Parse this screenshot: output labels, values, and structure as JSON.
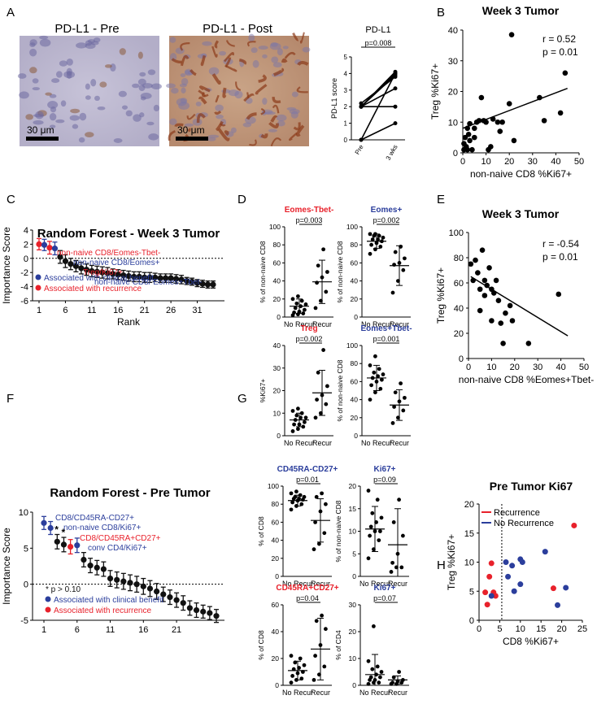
{
  "panel_labels": {
    "A": "A",
    "B": "B",
    "C": "C",
    "D": "D",
    "E": "E",
    "F": "F",
    "G": "G",
    "H": "H"
  },
  "panelA": {
    "pre_title": "PD-L1 - Pre",
    "post_title": "PD-L1 - Post",
    "scale_label": "30 μm"
  },
  "colors": {
    "red": "#e8212b",
    "blue": "#2b3e9c",
    "black": "#111111",
    "line": "#000000"
  },
  "chart_data": [
    {
      "id": "A_pdl1",
      "type": "line",
      "title": "PD-L1",
      "ylabel": "PD-L1 score",
      "categories": [
        "Pre",
        "3 wks"
      ],
      "pvalue": "p=0.008",
      "ylim": [
        0,
        5
      ],
      "yticks": [
        "0",
        "1",
        "2",
        "3",
        "4",
        "5"
      ],
      "pairs": [
        [
          0,
          4.0
        ],
        [
          0,
          1.0
        ],
        [
          2,
          4.1
        ],
        [
          2,
          3.9
        ],
        [
          2,
          2.0
        ],
        [
          2,
          3.1
        ],
        [
          2.2,
          3.8
        ],
        [
          2,
          4.0
        ]
      ]
    },
    {
      "id": "B",
      "type": "scatter",
      "title": "Week 3 Tumor",
      "xlabel": "non-naive CD8 %Ki67+",
      "ylabel": "Treg %Ki67+",
      "xlim": [
        0,
        50
      ],
      "ylim": [
        0,
        40
      ],
      "xticks": [
        "0",
        "10",
        "20",
        "30",
        "40",
        "50"
      ],
      "yticks": [
        "0",
        "10",
        "20",
        "30",
        "40"
      ],
      "r": "r = 0.52",
      "p": "p = 0.01",
      "fit": [
        [
          0,
          8
        ],
        [
          45,
          21
        ]
      ],
      "points": [
        [
          0.5,
          1
        ],
        [
          0.5,
          3
        ],
        [
          1,
          5
        ],
        [
          1.5,
          2
        ],
        [
          2,
          1
        ],
        [
          2,
          8
        ],
        [
          2.5,
          6
        ],
        [
          3,
          4
        ],
        [
          3,
          9.5
        ],
        [
          4,
          1
        ],
        [
          5,
          5
        ],
        [
          5,
          8
        ],
        [
          6,
          10
        ],
        [
          7,
          10.5
        ],
        [
          8,
          18
        ],
        [
          9,
          10.5
        ],
        [
          10,
          10
        ],
        [
          11,
          1
        ],
        [
          12,
          2
        ],
        [
          13,
          11
        ],
        [
          15,
          10
        ],
        [
          16,
          7
        ],
        [
          17,
          10
        ],
        [
          20,
          16
        ],
        [
          21,
          38.5
        ],
        [
          22,
          4
        ],
        [
          33,
          18
        ],
        [
          35,
          10.5
        ],
        [
          42,
          13
        ],
        [
          44,
          26
        ]
      ]
    },
    {
      "id": "C",
      "type": "scatter",
      "title": "Random Forest - Week 3 Tumor",
      "xlabel": "Rank",
      "ylabel": "Importance Score",
      "ylim": [
        -6,
        4
      ],
      "yticks": [
        "-6",
        "-4",
        "-2",
        "0",
        "2",
        "4"
      ],
      "xticks": [
        "1",
        "6",
        "11",
        "16",
        "21",
        "26",
        "31"
      ],
      "values": [
        2.0,
        1.9,
        1.5,
        1.4,
        0.2,
        -0.4,
        -0.8,
        -1.1,
        -1.4,
        -1.6,
        -1.8,
        -1.9,
        -2.0,
        -2.1,
        -2.2,
        -2.3,
        -2.4,
        -2.5,
        -2.6,
        -2.6,
        -2.7,
        -2.7,
        -2.7,
        -2.8,
        -2.8,
        -2.8,
        -2.9,
        -3.0,
        -3.2,
        -3.3,
        -3.5,
        -3.6,
        -3.7,
        -3.7
      ],
      "errors": [
        0.8,
        0.8,
        0.9,
        0.9,
        0.9,
        0.9,
        0.8,
        0.8,
        0.8,
        0.8,
        0.8,
        0.8,
        0.8,
        0.8,
        0.7,
        0.7,
        0.7,
        0.7,
        0.7,
        0.7,
        0.7,
        0.7,
        0.6,
        0.6,
        0.6,
        0.6,
        0.6,
        0.6,
        0.5,
        0.5,
        0.5,
        0.5,
        0.5,
        0.5
      ],
      "point_colors": [
        "red",
        "blue",
        "red",
        "blue"
      ],
      "annotations": [
        {
          "text": "non-naive CD8/Eomes-Tbet-",
          "color": "red"
        },
        {
          "text": "non-naive CD8/Eomes+",
          "color": "blue"
        },
        {
          "text": "Treg/Ki67+",
          "color": "red"
        },
        {
          "text": "non-naive CD8/ Eomes+Tbet-",
          "color": "blue"
        }
      ],
      "legend": [
        {
          "text": "Associated with clinical benefit",
          "color": "blue"
        },
        {
          "text": "Associated with recurrence",
          "color": "red"
        }
      ]
    },
    {
      "id": "D1",
      "type": "scatter",
      "title": "Eomes-Tbet-",
      "title_color": "red",
      "ylabel": "% of non-naive CD8",
      "categories": [
        "No Recur",
        "Recur"
      ],
      "pvalue": "p=0.003",
      "ylim": [
        0,
        100
      ],
      "yticks": [
        "0",
        "20",
        "40",
        "60",
        "80",
        "100"
      ],
      "groups": [
        {
          "mean": 12,
          "sd": 8,
          "points": [
            2,
            3,
            4,
            5,
            6,
            8,
            10,
            12,
            14,
            15,
            18,
            20,
            23
          ]
        },
        {
          "mean": 39,
          "sd": 24,
          "points": [
            10,
            18,
            28,
            38,
            44,
            50,
            57,
            75
          ]
        }
      ]
    },
    {
      "id": "D2",
      "type": "scatter",
      "title": "Eomes+",
      "title_color": "blue",
      "ylabel": "% of non-naive CD8",
      "categories": [
        "No Recur",
        "Recur"
      ],
      "pvalue": "p=0.002",
      "ylim": [
        0,
        100
      ],
      "yticks": [
        "0",
        "20",
        "40",
        "60",
        "80",
        "100"
      ],
      "groups": [
        {
          "mean": 84,
          "sd": 8,
          "points": [
            70,
            75,
            78,
            80,
            82,
            84,
            86,
            86,
            88,
            90,
            90,
            92,
            92
          ]
        },
        {
          "mean": 57,
          "sd": 22,
          "points": [
            27,
            40,
            52,
            58,
            60,
            65,
            72,
            78
          ]
        }
      ]
    },
    {
      "id": "D3",
      "type": "scatter",
      "title": "Treg",
      "title_color": "red",
      "ylabel": "%Ki67+",
      "categories": [
        "No Recur",
        "Recur"
      ],
      "pvalue": "p=0.002",
      "ylim": [
        0,
        40
      ],
      "yticks": [
        "0",
        "10",
        "20",
        "30",
        "40"
      ],
      "groups": [
        {
          "mean": 7,
          "sd": 3,
          "points": [
            2,
            3,
            4,
            5,
            5,
            6,
            7,
            8,
            8,
            9,
            10,
            11,
            12
          ]
        },
        {
          "mean": 19,
          "sd": 10,
          "points": [
            8,
            10,
            14,
            16,
            18,
            22,
            28,
            38
          ]
        }
      ]
    },
    {
      "id": "D4",
      "type": "scatter",
      "title": "Eomes+Tbet-",
      "title_color": "blue",
      "ylabel": "% of non-naive CD8",
      "categories": [
        "No Recur",
        "Recur"
      ],
      "pvalue": "p=0.001",
      "ylim": [
        0,
        100
      ],
      "yticks": [
        "0",
        "20",
        "40",
        "60",
        "80",
        "100"
      ],
      "groups": [
        {
          "mean": 64,
          "sd": 14,
          "points": [
            40,
            48,
            52,
            56,
            60,
            62,
            64,
            66,
            68,
            70,
            74,
            78,
            88
          ]
        },
        {
          "mean": 34,
          "sd": 17,
          "points": [
            14,
            20,
            28,
            32,
            38,
            42,
            48,
            58
          ]
        }
      ]
    },
    {
      "id": "E",
      "type": "scatter",
      "title": "Week 3 Tumor",
      "xlabel": "non-naive CD8 %Eomes+Tbet-",
      "ylabel": "Treg %Ki67+",
      "xlim": [
        0,
        50
      ],
      "ylim": [
        0,
        100
      ],
      "xticks": [
        "0",
        "10",
        "20",
        "30",
        "40",
        "50"
      ],
      "yticks": [
        "0",
        "20",
        "40",
        "60",
        "80",
        "100"
      ],
      "r": "r = -0.54",
      "p": "p = 0.01",
      "fit": [
        [
          1,
          65
        ],
        [
          43,
          18
        ]
      ],
      "points": [
        [
          1,
          75
        ],
        [
          2,
          62
        ],
        [
          3,
          78
        ],
        [
          4,
          68
        ],
        [
          5,
          55
        ],
        [
          5,
          38
        ],
        [
          6,
          86
        ],
        [
          7,
          62
        ],
        [
          7,
          50
        ],
        [
          8,
          58
        ],
        [
          9,
          72
        ],
        [
          10,
          55
        ],
        [
          10,
          30
        ],
        [
          11,
          52
        ],
        [
          12,
          62
        ],
        [
          13,
          46
        ],
        [
          14,
          28
        ],
        [
          15,
          12
        ],
        [
          16,
          36
        ],
        [
          18,
          42
        ],
        [
          19,
          30
        ],
        [
          26,
          12
        ],
        [
          39,
          51
        ]
      ]
    },
    {
      "id": "F",
      "type": "scatter",
      "title": "Random Forest - Pre Tumor",
      "ylabel": "Importance Score",
      "ylim": [
        -5,
        10
      ],
      "yticks": [
        "-5",
        "0",
        "5",
        "10"
      ],
      "xticks": [
        "1",
        "6",
        "11",
        "16",
        "21"
      ],
      "values": [
        8.5,
        7.8,
        5.9,
        5.5,
        5.2,
        5.4,
        3.4,
        2.6,
        2.3,
        2.1,
        0.8,
        0.6,
        0.4,
        0.2,
        0.0,
        -0.3,
        -0.6,
        -1.0,
        -1.4,
        -1.8,
        -2.2,
        -2.6,
        -3.3,
        -3.6,
        -3.8,
        -4.0,
        -4.4
      ],
      "errors": [
        0.9,
        0.9,
        1.0,
        1.0,
        1.0,
        1.0,
        1.0,
        1.0,
        1.0,
        1.0,
        1.1,
        1.1,
        1.1,
        1.1,
        1.1,
        1.1,
        1.1,
        1.1,
        1.0,
        1.0,
        1.0,
        1.0,
        1.0,
        1.0,
        0.9,
        0.9,
        0.9
      ],
      "point_colors": [
        "blue",
        "blue",
        "black",
        "black",
        "red",
        "blue"
      ],
      "star_marks": [
        "*",
        "*"
      ],
      "annotations": [
        {
          "text": "CD8/CD45RA-CD27+",
          "color": "blue"
        },
        {
          "text": "non-naive CD8/Ki67+",
          "color": "blue"
        },
        {
          "text": "CD8/CD45RA+CD27+",
          "color": "red"
        },
        {
          "text": "conv CD4/Ki67+",
          "color": "blue"
        }
      ],
      "legend": [
        {
          "text": "*  p > 0.10",
          "color": "black"
        },
        {
          "text": "Associated with clinical benefit",
          "color": "blue"
        },
        {
          "text": "Associated with recurrence",
          "color": "red"
        }
      ]
    },
    {
      "id": "G1",
      "type": "scatter",
      "title": "CD45RA-CD27+",
      "title_color": "blue",
      "ylabel": "% of CD8",
      "categories": [
        "No Recur",
        "Recur"
      ],
      "pvalue": "p=0.01",
      "ylim": [
        0,
        100
      ],
      "yticks": [
        "0",
        "20",
        "40",
        "60",
        "80",
        "100"
      ],
      "groups": [
        {
          "mean": 84,
          "sd": 6,
          "points": [
            74,
            78,
            80,
            82,
            84,
            85,
            86,
            86,
            88,
            88,
            90,
            92,
            94
          ]
        },
        {
          "mean": 62,
          "sd": 24,
          "points": [
            30,
            36,
            48,
            60,
            72,
            80,
            88,
            92
          ]
        }
      ]
    },
    {
      "id": "G2",
      "type": "scatter",
      "title": "Ki67+",
      "title_color": "blue",
      "ylabel": "% of non-naive CD8",
      "categories": [
        "No Recur",
        "Recur"
      ],
      "pvalue": "p=0.09",
      "ylim": [
        0,
        20
      ],
      "yticks": [
        "0",
        "5",
        "10",
        "15",
        "20"
      ],
      "groups": [
        {
          "mean": 10.5,
          "sd": 5,
          "points": [
            4,
            6,
            8,
            9,
            10,
            10,
            11,
            12,
            13,
            14,
            17,
            19
          ]
        },
        {
          "mean": 7,
          "sd": 8,
          "points": [
            1,
            2,
            2,
            3,
            5,
            9,
            12,
            17
          ]
        }
      ]
    },
    {
      "id": "G3",
      "type": "scatter",
      "title": "CD45RA+CD27+",
      "title_color": "red",
      "ylabel": "% of CD8",
      "categories": [
        "No Recur",
        "Recur"
      ],
      "pvalue": "p=0.04",
      "ylim": [
        0,
        60
      ],
      "yticks": [
        "0",
        "20",
        "40",
        "60"
      ],
      "groups": [
        {
          "mean": 11,
          "sd": 7,
          "points": [
            2,
            4,
            5,
            7,
            9,
            10,
            12,
            13,
            15,
            17,
            20,
            22
          ]
        },
        {
          "mean": 27,
          "sd": 23,
          "points": [
            4,
            8,
            14,
            22,
            30,
            42,
            48,
            52
          ]
        }
      ]
    },
    {
      "id": "G4",
      "type": "scatter",
      "title": "Ki67+",
      "title_color": "blue",
      "ylabel": "% of CD4",
      "categories": [
        "No Recur",
        "Recur"
      ],
      "pvalue": "p=0.07",
      "ylim": [
        0,
        30
      ],
      "yticks": [
        "0",
        "10",
        "20",
        "30"
      ],
      "groups": [
        {
          "mean": 4,
          "sd": 7.5,
          "points": [
            0.5,
            1,
            1,
            2,
            2,
            3,
            3,
            4,
            5,
            6,
            7,
            9,
            22
          ]
        },
        {
          "mean": 2,
          "sd": 1.5,
          "points": [
            0.5,
            0.5,
            1,
            1,
            1.5,
            2,
            3,
            5
          ]
        }
      ]
    },
    {
      "id": "H",
      "type": "scatter",
      "title": "Pre Tumor Ki67",
      "xlabel": "CD8 %Ki67+",
      "ylabel": "Treg %Ki67+",
      "xlim": [
        0,
        25
      ],
      "ylim": [
        0,
        20
      ],
      "xticks": [
        "0",
        "5",
        "10",
        "15",
        "20",
        "25"
      ],
      "yticks": [
        "0",
        "5",
        "10",
        "15",
        "20"
      ],
      "threshold_x": 5.5,
      "legend": [
        {
          "text": "Recurrence",
          "color": "red"
        },
        {
          "text": "No Recurrence",
          "color": "blue"
        }
      ],
      "series": [
        {
          "name": "Recurrence",
          "color": "red",
          "points": [
            [
              1.5,
              4.8
            ],
            [
              2,
              2.7
            ],
            [
              2.5,
              7.5
            ],
            [
              3,
              9.8
            ],
            [
              3.5,
              4.8
            ],
            [
              4,
              4.2
            ],
            [
              18,
              5.5
            ],
            [
              23,
              16.3
            ]
          ]
        },
        {
          "name": "No Recurrence",
          "color": "blue",
          "points": [
            [
              3,
              4.2
            ],
            [
              6.5,
              10
            ],
            [
              7,
              7.5
            ],
            [
              8,
              9.4
            ],
            [
              8.5,
              5
            ],
            [
              10,
              10.5
            ],
            [
              10,
              6.2
            ],
            [
              10.5,
              10
            ],
            [
              16,
              11.8
            ],
            [
              19,
              2.6
            ],
            [
              21,
              5.6
            ]
          ]
        }
      ]
    }
  ]
}
